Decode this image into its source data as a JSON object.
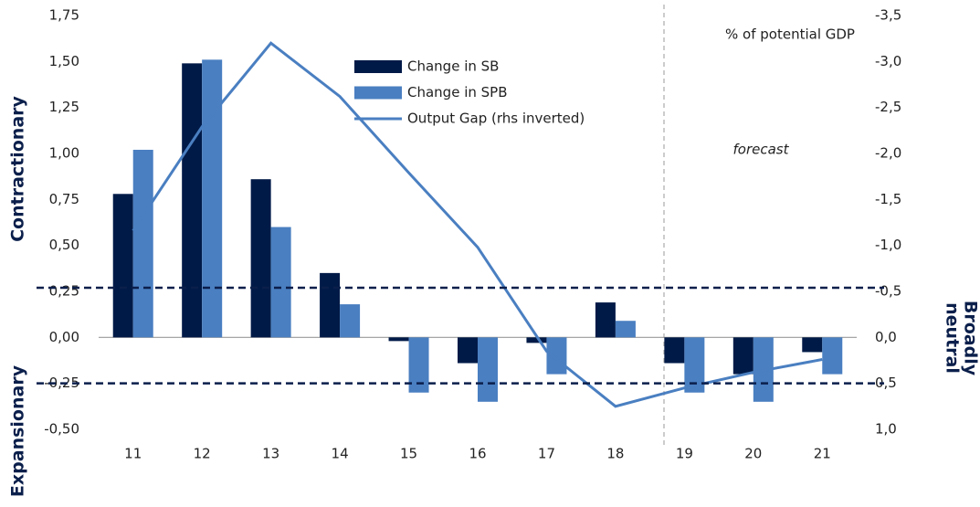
{
  "chart_data": {
    "type": "bar",
    "categories": [
      "11",
      "12",
      "13",
      "14",
      "15",
      "16",
      "17",
      "18",
      "19",
      "20",
      "21"
    ],
    "series": [
      {
        "name": "Change in SB",
        "color": "#001a47",
        "type": "bar",
        "values": [
          0.78,
          1.49,
          0.86,
          0.35,
          -0.02,
          -0.14,
          -0.03,
          0.19,
          -0.14,
          -0.2,
          -0.08
        ]
      },
      {
        "name": "Change in SPB",
        "color": "#4a7fc1",
        "type": "bar",
        "values": [
          1.02,
          1.51,
          0.6,
          0.18,
          -0.3,
          -0.35,
          -0.2,
          0.09,
          -0.3,
          -0.35,
          -0.2
        ]
      },
      {
        "name": "Output Gap (rhs inverted)",
        "color": "#4a7fc1",
        "type": "line",
        "axis": "y2",
        "values": [
          -1.16,
          -2.29,
          -3.2,
          -2.62,
          -1.79,
          -0.98,
          0.15,
          0.75,
          0.55,
          0.38,
          0.24
        ]
      }
    ],
    "ylim": [
      -0.5,
      1.75
    ],
    "yticks": [
      {
        "value": 1.75,
        "label": "1,75"
      },
      {
        "value": 1.5,
        "label": "1,50"
      },
      {
        "value": 1.25,
        "label": "1,25"
      },
      {
        "value": 1,
        "label": "1,00"
      },
      {
        "value": 0.75,
        "label": "0,75"
      },
      {
        "value": 0.5,
        "label": "0,50"
      },
      {
        "value": 0.25,
        "label": "0,25"
      },
      {
        "value": 0,
        "label": "0,00"
      },
      {
        "value": -0.25,
        "label": "-0,25"
      },
      {
        "value": -0.5,
        "label": "-0,50"
      }
    ],
    "y2lim": [
      -3.5,
      1.0
    ],
    "y2_inverted": true,
    "y2ticks": [
      {
        "value": -3.5,
        "label": "-3,5"
      },
      {
        "value": -3,
        "label": "-3,0"
      },
      {
        "value": -2.5,
        "label": "-2,5"
      },
      {
        "value": -2,
        "label": "-2,0"
      },
      {
        "value": -1.5,
        "label": "-1,5"
      },
      {
        "value": -1,
        "label": "-1,0"
      },
      {
        "value": -0.5,
        "label": "-0,5"
      },
      {
        "value": 0,
        "label": "0,0"
      },
      {
        "value": 0.5,
        "label": "0,5"
      },
      {
        "value": 1,
        "label": "1,0"
      }
    ],
    "y2_label": "% of potential GDP",
    "reference_lines": [
      0.27,
      -0.25
    ],
    "annotations": {
      "forecast": "forecast",
      "contractionary": "Contractionary",
      "expansionary": "Expansionary",
      "neutral": [
        "Broadly",
        "neutral"
      ]
    }
  }
}
